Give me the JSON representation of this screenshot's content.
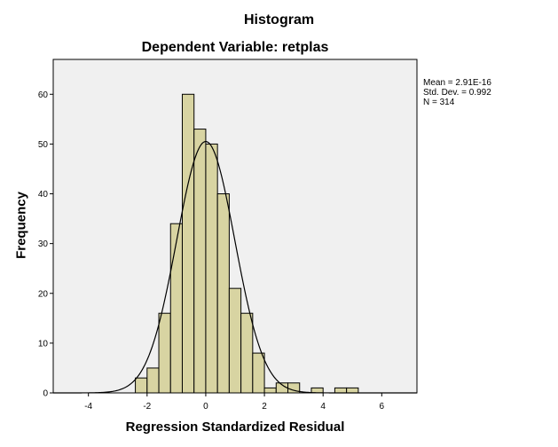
{
  "chart_data": {
    "type": "bar",
    "title": "Histogram",
    "subtitle": "Dependent Variable: retplas",
    "xlabel": "Regression Standardized Residual",
    "ylabel": "Frequency",
    "xlim": [
      -5.2,
      7.2
    ],
    "ylim": [
      0,
      67
    ],
    "xticks": [
      -4,
      -2,
      0,
      2,
      4,
      6
    ],
    "yticks": [
      0,
      10,
      20,
      30,
      40,
      50,
      60
    ],
    "bin_width": 0.4,
    "bins": [
      {
        "x0": -2.4,
        "x1": -2.0,
        "value": 3
      },
      {
        "x0": -2.0,
        "x1": -1.6,
        "value": 5
      },
      {
        "x0": -1.6,
        "x1": -1.2,
        "value": 16
      },
      {
        "x0": -1.2,
        "x1": -0.8,
        "value": 34
      },
      {
        "x0": -0.8,
        "x1": -0.4,
        "value": 60
      },
      {
        "x0": -0.4,
        "x1": 0.0,
        "value": 53
      },
      {
        "x0": 0.0,
        "x1": 0.4,
        "value": 50
      },
      {
        "x0": 0.4,
        "x1": 0.8,
        "value": 40
      },
      {
        "x0": 0.8,
        "x1": 1.2,
        "value": 21
      },
      {
        "x0": 1.2,
        "x1": 1.6,
        "value": 16
      },
      {
        "x0": 1.6,
        "x1": 2.0,
        "value": 8
      },
      {
        "x0": 2.0,
        "x1": 2.4,
        "value": 1
      },
      {
        "x0": 2.4,
        "x1": 2.8,
        "value": 2
      },
      {
        "x0": 2.8,
        "x1": 3.2,
        "value": 2
      },
      {
        "x0": 3.6,
        "x1": 4.0,
        "value": 1
      },
      {
        "x0": 4.4,
        "x1": 4.8,
        "value": 1
      },
      {
        "x0": 4.8,
        "x1": 5.2,
        "value": 1
      }
    ],
    "normal_curve": {
      "mean": 0.0,
      "sd": 0.992,
      "n": 314
    },
    "stats": {
      "mean_label": "Mean = 2.91E-16",
      "sd_label": "Std. Dev. = 0.992",
      "n_label": "N = 314"
    },
    "colors": {
      "bar_fill": "#d8d4a2",
      "bar_stroke": "#000000",
      "plot_background": "#f0f0f0",
      "curve": "#000000"
    },
    "grid": false
  }
}
